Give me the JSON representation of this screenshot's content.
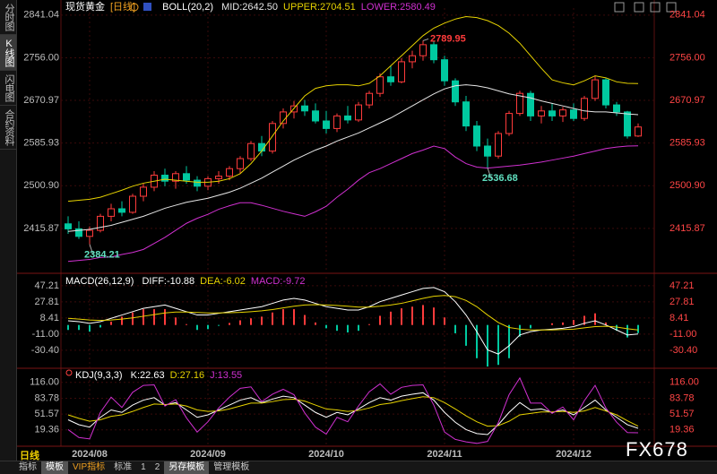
{
  "ui": {
    "sidebar": [
      "分时图",
      "K线图",
      "闪电图",
      "合约资料"
    ],
    "period_label": "日线",
    "bottom_tabs": [
      "指标",
      "模板",
      "VIP指标",
      "标准",
      "1",
      "2",
      "另存模板",
      "管理模板"
    ],
    "watermark": "FX678"
  },
  "chart_data": [
    {
      "type": "candlestick",
      "title": "现货黄金",
      "period": "[日线]",
      "indicator": "BOLL(20,2)",
      "categories": [
        null,
        null,
        "2024/08",
        null,
        null,
        null,
        null,
        null,
        null,
        null,
        null,
        null,
        null,
        "2024/09",
        null,
        null,
        null,
        null,
        null,
        null,
        null,
        null,
        null,
        null,
        "2024/10",
        null,
        null,
        null,
        null,
        null,
        null,
        null,
        null,
        null,
        null,
        "2024/11",
        null,
        null,
        null,
        null,
        null,
        null,
        null,
        null,
        null,
        null,
        null,
        "2024/12",
        null,
        null,
        null,
        null,
        null,
        null
      ],
      "open": [
        2425,
        2415,
        2400,
        2412,
        2440,
        2455,
        2448,
        2480,
        2498,
        2522,
        2510,
        2525,
        2512,
        2500,
        2515,
        2520,
        2535,
        2555,
        2585,
        2570,
        2625,
        2648,
        2660,
        2650,
        2630,
        2615,
        2640,
        2632,
        2662,
        2685,
        2718,
        2708,
        2748,
        2760,
        2782,
        2752,
        2710,
        2668,
        2620,
        2580,
        2560,
        2605,
        2645,
        2685,
        2640,
        2650,
        2640,
        2652,
        2635,
        2675,
        2712,
        2662,
        2648,
        2600
      ],
      "high": [
        2440,
        2430,
        2420,
        2445,
        2465,
        2470,
        2485,
        2505,
        2530,
        2535,
        2530,
        2540,
        2520,
        2520,
        2530,
        2540,
        2560,
        2590,
        2600,
        2630,
        2655,
        2670,
        2672,
        2665,
        2650,
        2645,
        2660,
        2668,
        2690,
        2725,
        2740,
        2755,
        2770,
        2789.95,
        2789,
        2760,
        2715,
        2680,
        2630,
        2595,
        2610,
        2650,
        2690,
        2690,
        2660,
        2665,
        2658,
        2665,
        2680,
        2720,
        2715,
        2668,
        2650,
        2625
      ],
      "low": [
        2405,
        2395,
        2384.21,
        2408,
        2430,
        2440,
        2445,
        2470,
        2490,
        2500,
        2495,
        2505,
        2490,
        2492,
        2505,
        2512,
        2525,
        2550,
        2560,
        2565,
        2615,
        2635,
        2640,
        2625,
        2605,
        2608,
        2625,
        2628,
        2655,
        2678,
        2700,
        2705,
        2735,
        2750,
        2745,
        2700,
        2660,
        2610,
        2570,
        2536.68,
        2555,
        2600,
        2640,
        2630,
        2625,
        2630,
        2628,
        2630,
        2630,
        2670,
        2655,
        2640,
        2595,
        2598
      ],
      "close": [
        2415,
        2400,
        2412,
        2440,
        2455,
        2448,
        2480,
        2498,
        2522,
        2510,
        2525,
        2512,
        2500,
        2515,
        2520,
        2535,
        2555,
        2585,
        2570,
        2625,
        2648,
        2660,
        2650,
        2630,
        2615,
        2640,
        2632,
        2662,
        2685,
        2718,
        2708,
        2748,
        2760,
        2782,
        2752,
        2710,
        2668,
        2620,
        2580,
        2560,
        2605,
        2645,
        2685,
        2640,
        2650,
        2640,
        2652,
        2635,
        2675,
        2712,
        2662,
        2648,
        2600,
        2618
      ],
      "up_color": "#ff3b3b",
      "down_color": "#00c9a0",
      "series": [
        {
          "name": "MID:2642.50",
          "color": "#e6e6e6",
          "values": [
            2410,
            2412,
            2414,
            2418,
            2422,
            2428,
            2434,
            2440,
            2448,
            2456,
            2462,
            2468,
            2472,
            2476,
            2482,
            2488,
            2496,
            2506,
            2516,
            2528,
            2540,
            2552,
            2562,
            2572,
            2580,
            2590,
            2598,
            2606,
            2616,
            2626,
            2636,
            2648,
            2660,
            2672,
            2684,
            2694,
            2700,
            2702,
            2700,
            2696,
            2690,
            2684,
            2680,
            2676,
            2670,
            2665,
            2660,
            2655,
            2650,
            2648,
            2648,
            2646,
            2644,
            2642.5
          ]
        },
        {
          "name": "UPPER:2704.51",
          "color": "#e6d200",
          "values": [
            2470,
            2472,
            2474,
            2478,
            2485,
            2492,
            2500,
            2506,
            2510,
            2514,
            2512,
            2510,
            2508,
            2508,
            2510,
            2515,
            2525,
            2545,
            2570,
            2600,
            2630,
            2655,
            2680,
            2695,
            2700,
            2702,
            2702,
            2700,
            2705,
            2720,
            2740,
            2760,
            2780,
            2800,
            2815,
            2825,
            2833,
            2838,
            2836,
            2830,
            2820,
            2805,
            2785,
            2760,
            2735,
            2712,
            2706,
            2702,
            2710,
            2720,
            2716,
            2708,
            2705,
            2704.51
          ]
        },
        {
          "name": "LOWER:2580.49",
          "color": "#d030d0",
          "values": [
            2350,
            2352,
            2354,
            2358,
            2359,
            2364,
            2368,
            2374,
            2386,
            2398,
            2412,
            2426,
            2436,
            2444,
            2454,
            2461,
            2467,
            2467,
            2462,
            2456,
            2450,
            2445,
            2440,
            2449,
            2460,
            2478,
            2494,
            2512,
            2527,
            2535,
            2545,
            2555,
            2565,
            2572,
            2580,
            2575,
            2558,
            2545,
            2538,
            2536,
            2538,
            2540,
            2542,
            2545,
            2548,
            2552,
            2556,
            2560,
            2565,
            2570,
            2575,
            2578,
            2580,
            2580.49
          ]
        }
      ],
      "annotations": [
        2789.95,
        2536.68,
        2384.21
      ],
      "ylim": [
        2330,
        2855
      ],
      "yticks": [
        2841.04,
        {
          "value": 2756,
          "label": "2756.00"
        },
        2670.97,
        2585.93,
        {
          "value": 2500.9,
          "label": "2500.90"
        },
        2415.87
      ],
      "grid": true
    },
    {
      "type": "macd",
      "title": "MACD(26,12,9)",
      "series": [
        {
          "name": "DIFF:-10.88",
          "color": "#ffffff",
          "values": [
            5,
            4,
            2,
            4,
            8,
            12,
            16,
            20,
            22,
            24,
            20,
            16,
            12,
            12,
            14,
            16,
            18,
            20,
            22,
            26,
            30,
            32,
            30,
            26,
            22,
            20,
            18,
            18,
            22,
            28,
            32,
            36,
            40,
            44,
            45,
            40,
            28,
            12,
            -8,
            -30,
            -35,
            -25,
            -12,
            -8,
            -6,
            -5,
            -4,
            -2,
            2,
            5,
            0,
            -6,
            -12,
            -10.88
          ]
        },
        {
          "name": "DEA:-6.02",
          "color": "#e6d200",
          "values": [
            8,
            7,
            6,
            5.5,
            6,
            7,
            8.5,
            10.5,
            12.5,
            14.5,
            15.5,
            15.5,
            15,
            14.5,
            14.5,
            14.8,
            15.2,
            16,
            17,
            18.5,
            20.5,
            22.5,
            24,
            24.5,
            24,
            23.5,
            22.5,
            21.5,
            21.5,
            22.5,
            24,
            26,
            29,
            32,
            34.5,
            35.5,
            34,
            29.5,
            22,
            12,
            3,
            -3,
            -5,
            -6,
            -6,
            -6,
            -5.5,
            -5,
            -3.5,
            -2,
            -1.5,
            -2.5,
            -4.5,
            -6.02
          ]
        },
        {
          "name": "MACD:-9.72",
          "type": "bar",
          "color": "#d030d0",
          "up_color": "#ff3b3b",
          "down_color": "#00c9a0",
          "values": [
            -6,
            -6,
            -8,
            -3,
            4,
            10,
            15,
            19,
            19,
            19,
            9,
            1,
            -6,
            -5,
            -1,
            2.4,
            5.6,
            8,
            10,
            15,
            19,
            19,
            12,
            3,
            -4,
            -7,
            -9,
            -7,
            1,
            11,
            16,
            20,
            22,
            24,
            21,
            9,
            -10,
            -25,
            -40,
            -50,
            -48,
            -40,
            -14,
            -4,
            0,
            2,
            3,
            6,
            11,
            14,
            3,
            -7,
            -15,
            -9.72
          ]
        }
      ],
      "ylim": [
        -51,
        60
      ],
      "yticks": [
        47.21,
        27.81,
        8.41,
        {
          "value": -11,
          "label": "-11.00"
        },
        {
          "value": -30.4,
          "label": "-30.40"
        }
      ],
      "grid": true
    },
    {
      "type": "line",
      "title": "KDJ(9,3,3)",
      "series": [
        {
          "name": "K:22.63",
          "color": "#ffffff",
          "values": [
            40,
            30,
            25,
            45,
            60,
            55,
            70,
            80,
            85,
            70,
            75,
            60,
            45,
            50,
            60,
            70,
            80,
            85,
            75,
            82,
            88,
            85,
            70,
            55,
            45,
            55,
            50,
            62,
            75,
            85,
            80,
            88,
            92,
            95,
            80,
            55,
            35,
            20,
            12,
            10,
            30,
            55,
            75,
            60,
            62,
            55,
            60,
            50,
            65,
            80,
            60,
            45,
            30,
            22.63
          ]
        },
        {
          "name": "D:27.16",
          "color": "#e6d200",
          "values": [
            50,
            43,
            37,
            40,
            47,
            50,
            57,
            65,
            72,
            71,
            72,
            68,
            60,
            57,
            58,
            62,
            68,
            74,
            74,
            77,
            81,
            82,
            78,
            70,
            62,
            60,
            57,
            59,
            64,
            71,
            74,
            79,
            83,
            87,
            85,
            75,
            62,
            48,
            36,
            27,
            28,
            37,
            50,
            53,
            56,
            56,
            57,
            55,
            58,
            65,
            58,
            50,
            38,
            27.16
          ]
        },
        {
          "name": "J:13.55",
          "color": "#d030d0",
          "values": [
            20,
            4,
            1,
            55,
            86,
            65,
            96,
            110,
            111,
            68,
            81,
            44,
            15,
            36,
            64,
            86,
            104,
            107,
            77,
            92,
            102,
            91,
            54,
            25,
            11,
            45,
            36,
            68,
            97,
            113,
            92,
            106,
            110,
            111,
            70,
            15,
            0,
            -5,
            -8,
            -4,
            34,
            91,
            125,
            74,
            74,
            53,
            66,
            40,
            79,
            110,
            64,
            35,
            14,
            13.55
          ]
        }
      ],
      "ylim": [
        -12,
        143
      ],
      "yticks": [
        {
          "value": 116,
          "label": "116.00"
        },
        83.78,
        51.57,
        19.36
      ],
      "grid": true
    }
  ]
}
